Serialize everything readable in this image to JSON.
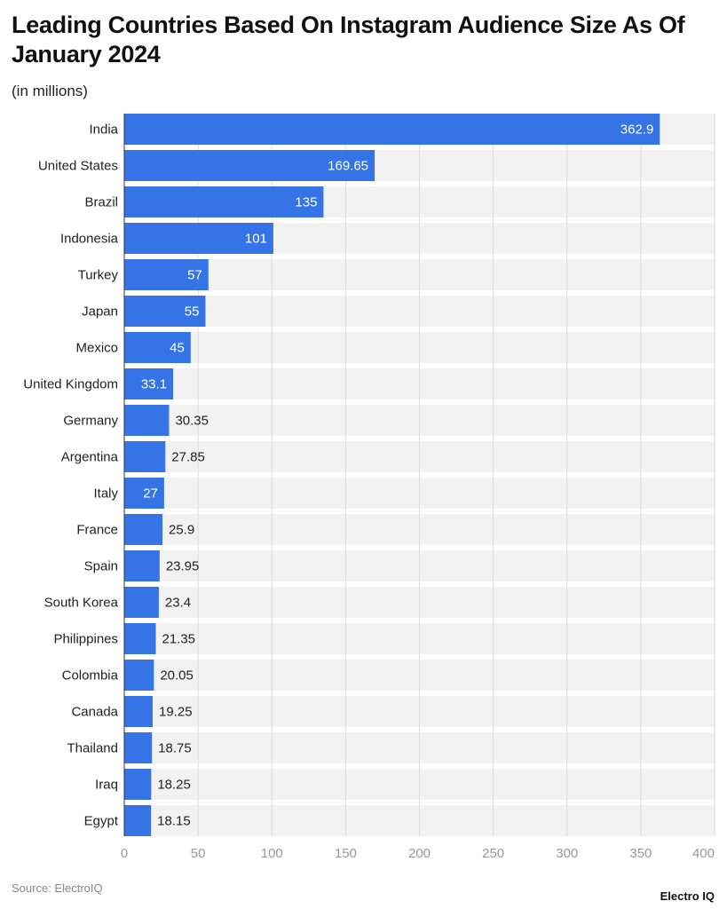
{
  "chart_data": {
    "type": "bar",
    "orientation": "horizontal",
    "title": "Leading Countries Based On Instagram Audience Size As Of January 2024",
    "subtitle": "(in millions)",
    "categories": [
      "India",
      "United States",
      "Brazil",
      "Indonesia",
      "Turkey",
      "Japan",
      "Mexico",
      "United Kingdom",
      "Germany",
      "Argentina",
      "Italy",
      "France",
      "Spain",
      "South Korea",
      "Philippines",
      "Colombia",
      "Canada",
      "Thailand",
      "Iraq",
      "Egypt"
    ],
    "values": [
      362.9,
      169.65,
      135,
      101,
      57,
      55,
      45,
      33.1,
      30.35,
      27.85,
      27,
      25.9,
      23.95,
      23.4,
      21.35,
      20.05,
      19.25,
      18.75,
      18.25,
      18.15
    ],
    "xlim": [
      0,
      400
    ],
    "xticks": [
      "0",
      "50",
      "100",
      "150",
      "200",
      "250",
      "300",
      "350",
      "400"
    ],
    "grid": true,
    "bar_color": "#3474e6",
    "band_color": "#f2f2f2"
  },
  "footer": {
    "source": "Source: ElectroIQ",
    "logo": "Electro IQ"
  }
}
